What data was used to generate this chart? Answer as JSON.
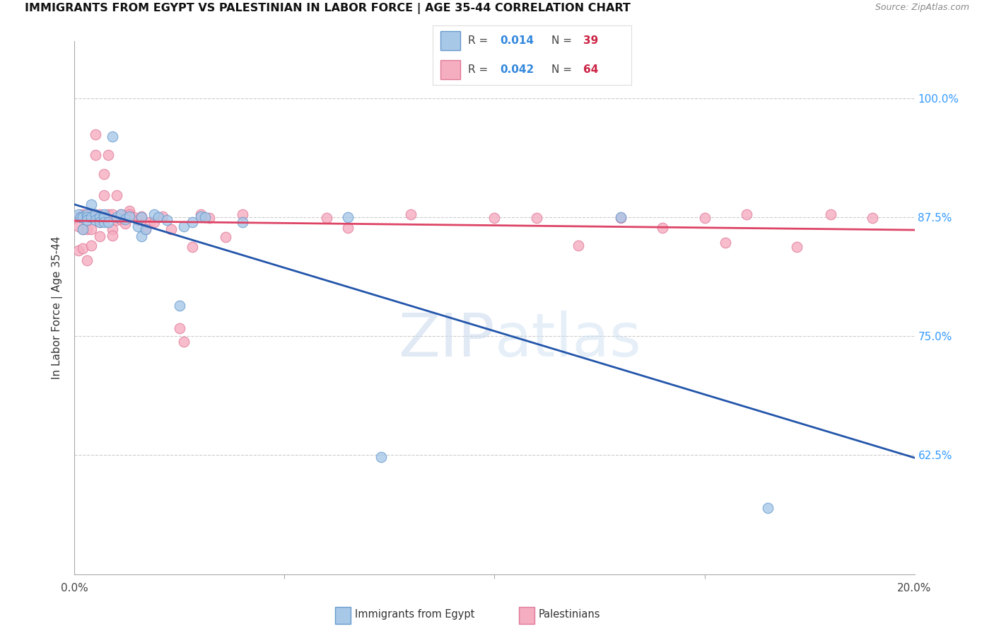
{
  "title": "IMMIGRANTS FROM EGYPT VS PALESTINIAN IN LABOR FORCE | AGE 35-44 CORRELATION CHART",
  "source": "Source: ZipAtlas.com",
  "ylabel": "In Labor Force | Age 35-44",
  "yticks": [
    0.625,
    0.75,
    0.875,
    1.0
  ],
  "ytick_labels": [
    "62.5%",
    "75.0%",
    "87.5%",
    "100.0%"
  ],
  "xlim": [
    0.0,
    0.2
  ],
  "ylim": [
    0.5,
    1.06
  ],
  "legend_r1": "0.014",
  "legend_n1": "39",
  "legend_r2": "0.042",
  "legend_n2": "64",
  "legend_label1": "Immigrants from Egypt",
  "legend_label2": "Palestinians",
  "watermark_zip": "ZIP",
  "watermark_atlas": "atlas",
  "egypt_color": "#a8c8e8",
  "palestine_color": "#f5adc0",
  "egypt_edge": "#6699cc",
  "palestine_edge": "#e07898",
  "trend_egypt_color": "#2255aa",
  "trend_pal_color": "#dd4466",
  "background": "#ffffff",
  "egypt_x": [
    0.001,
    0.0015,
    0.002,
    0.002,
    0.003,
    0.003,
    0.003,
    0.004,
    0.004,
    0.005,
    0.005,
    0.006,
    0.006,
    0.007,
    0.007,
    0.007,
    0.008,
    0.009,
    0.01,
    0.011,
    0.012,
    0.013,
    0.015,
    0.016,
    0.016,
    0.017,
    0.019,
    0.02,
    0.022,
    0.025,
    0.026,
    0.028,
    0.03,
    0.031,
    0.04,
    0.065,
    0.073,
    0.13,
    0.165
  ],
  "egypt_y": [
    0.878,
    0.875,
    0.875,
    0.862,
    0.878,
    0.875,
    0.872,
    0.888,
    0.875,
    0.878,
    0.872,
    0.875,
    0.87,
    0.878,
    0.875,
    0.87,
    0.87,
    0.96,
    0.875,
    0.878,
    0.873,
    0.876,
    0.865,
    0.875,
    0.855,
    0.862,
    0.878,
    0.875,
    0.872,
    0.782,
    0.865,
    0.87,
    0.876,
    0.875,
    0.87,
    0.875,
    0.623,
    0.875,
    0.57
  ],
  "pal_x": [
    0.001,
    0.001,
    0.001,
    0.002,
    0.002,
    0.002,
    0.003,
    0.003,
    0.003,
    0.004,
    0.004,
    0.004,
    0.005,
    0.005,
    0.005,
    0.006,
    0.006,
    0.006,
    0.007,
    0.007,
    0.008,
    0.008,
    0.009,
    0.009,
    0.009,
    0.01,
    0.01,
    0.011,
    0.011,
    0.012,
    0.012,
    0.013,
    0.013,
    0.013,
    0.014,
    0.015,
    0.016,
    0.016,
    0.017,
    0.018,
    0.019,
    0.021,
    0.023,
    0.025,
    0.026,
    0.028,
    0.03,
    0.032,
    0.036,
    0.04,
    0.06,
    0.065,
    0.08,
    0.1,
    0.11,
    0.12,
    0.13,
    0.14,
    0.15,
    0.155,
    0.16,
    0.172,
    0.18,
    0.19
  ],
  "pal_y": [
    0.875,
    0.865,
    0.84,
    0.878,
    0.862,
    0.842,
    0.878,
    0.862,
    0.83,
    0.878,
    0.862,
    0.845,
    0.962,
    0.94,
    0.878,
    0.878,
    0.87,
    0.855,
    0.92,
    0.898,
    0.878,
    0.94,
    0.878,
    0.862,
    0.856,
    0.898,
    0.872,
    0.873,
    0.878,
    0.868,
    0.875,
    0.882,
    0.878,
    0.875,
    0.875,
    0.872,
    0.872,
    0.876,
    0.862,
    0.87,
    0.87,
    0.876,
    0.862,
    0.758,
    0.744,
    0.844,
    0.878,
    0.874,
    0.854,
    0.878,
    0.874,
    0.864,
    0.878,
    0.874,
    0.874,
    0.845,
    0.874,
    0.864,
    0.874,
    0.848,
    0.878,
    0.844,
    0.878,
    0.874
  ]
}
